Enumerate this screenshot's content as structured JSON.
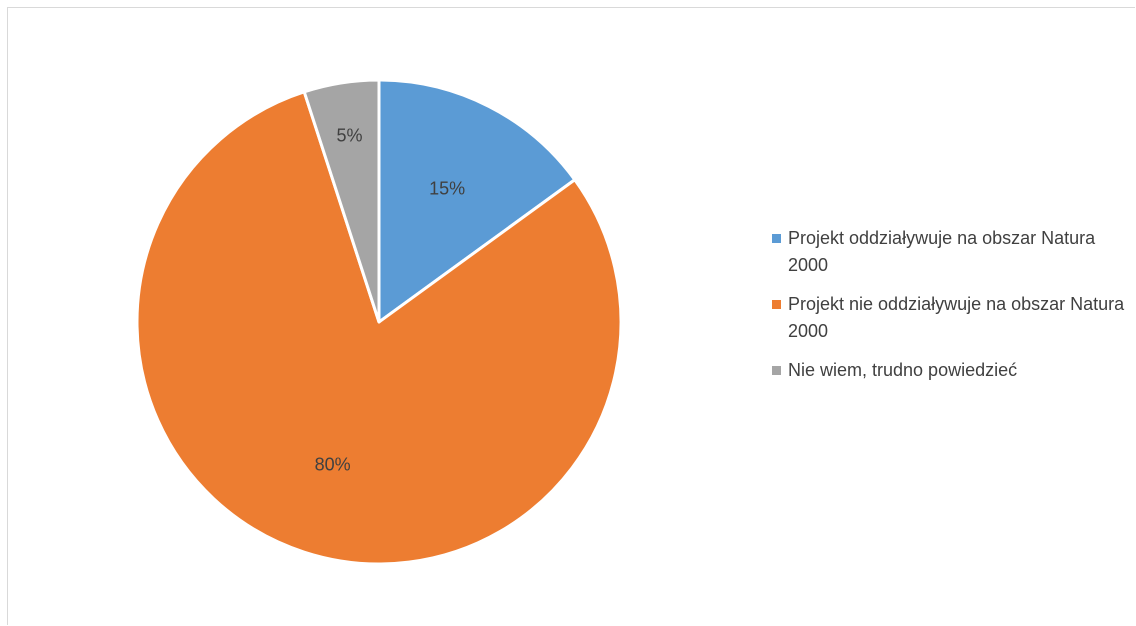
{
  "chart_data": {
    "type": "pie",
    "categories": [
      "Projekt oddziaływuje na obszar Natura 2000",
      "Projekt nie oddziaływuje na obszar Natura 2000",
      "Nie wiem, trudno powiedzieć"
    ],
    "values": [
      15,
      80,
      5
    ],
    "data_labels": [
      "15%",
      "80%",
      "5%"
    ],
    "colors": [
      "#5b9bd5",
      "#ed7d31",
      "#a5a5a5"
    ],
    "start_angle_deg": 0,
    "direction": "clockwise",
    "legend_position": "right"
  }
}
